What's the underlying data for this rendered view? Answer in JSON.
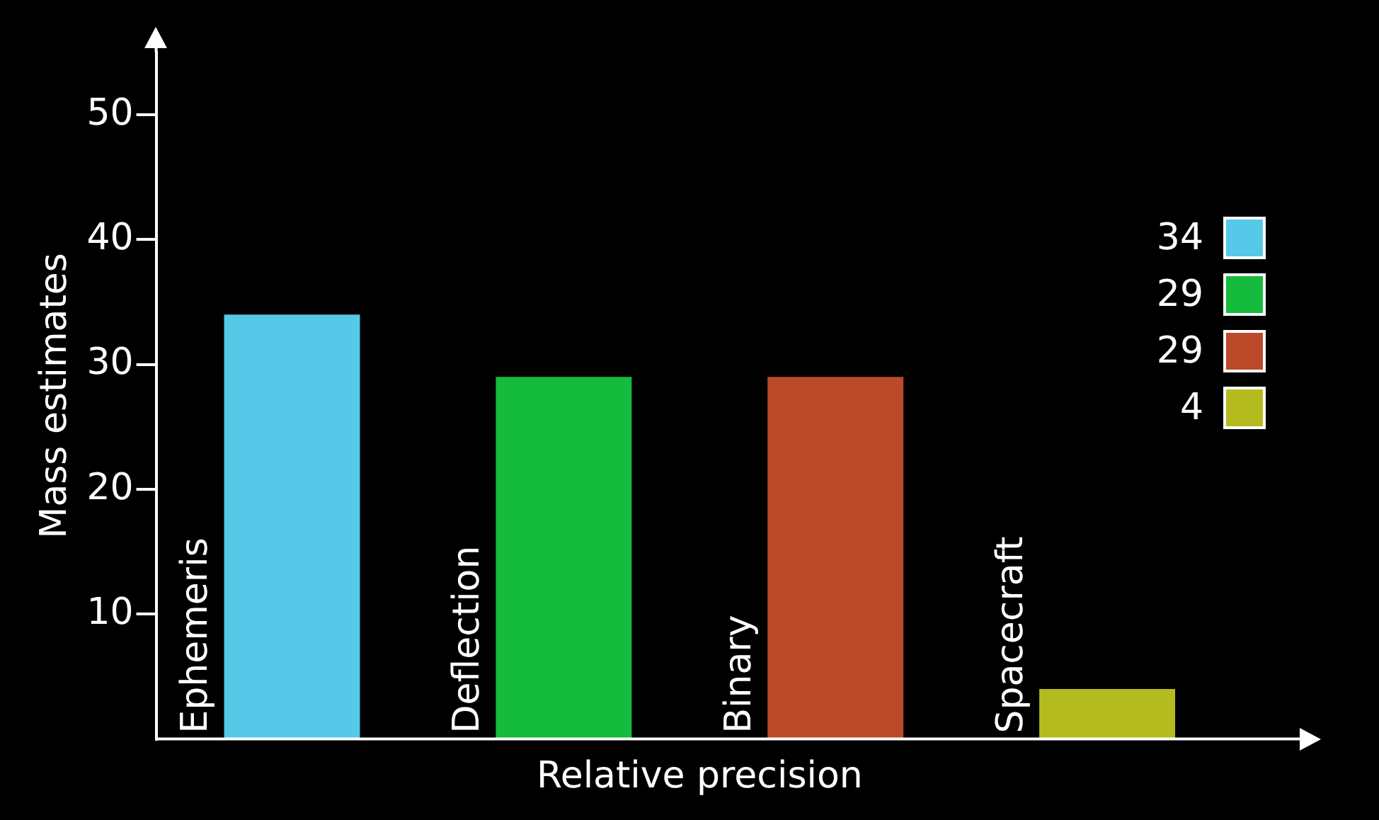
{
  "chart_data": {
    "type": "bar",
    "xlabel": "Relative precision",
    "ylabel": "Mass estimates",
    "categories": [
      "Ephemeris",
      "Deflection",
      "Binary",
      "Spacecraft"
    ],
    "series": [
      {
        "name": "34",
        "color": "#56c8e8",
        "values": [
          34,
          null,
          null,
          null
        ]
      },
      {
        "name": "29",
        "color": "#15bb3c",
        "values": [
          null,
          29,
          null,
          null
        ]
      },
      {
        "name": "29",
        "color": "#bb4a2a",
        "values": [
          null,
          null,
          29,
          null
        ]
      },
      {
        "name": "4",
        "color": "#b4bb1e",
        "values": [
          null,
          null,
          null,
          4
        ]
      }
    ],
    "ylim": [
      0,
      55
    ],
    "yticks": [
      10,
      20,
      30,
      40,
      50
    ],
    "grid": false,
    "legend": "right",
    "tick_labels": "y"
  }
}
